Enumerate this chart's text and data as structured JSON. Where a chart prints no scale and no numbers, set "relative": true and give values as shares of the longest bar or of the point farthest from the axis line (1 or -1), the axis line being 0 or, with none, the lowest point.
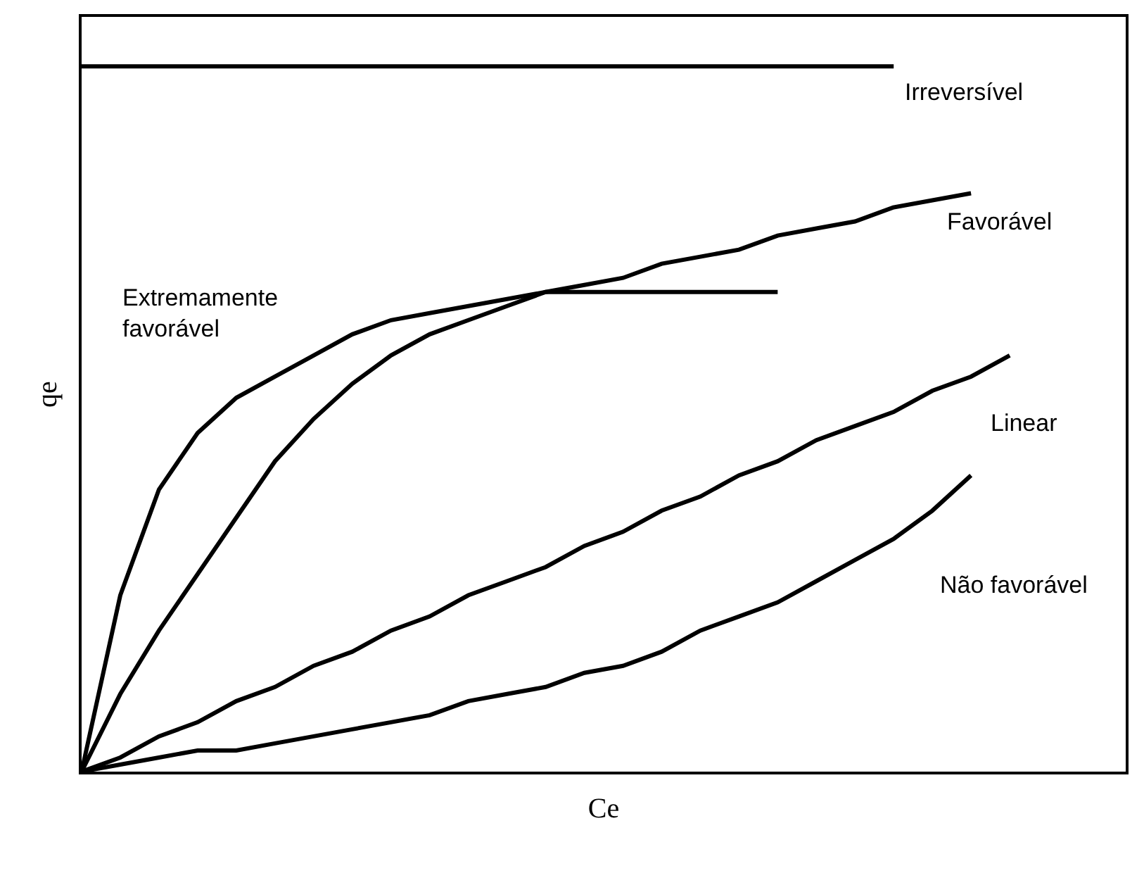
{
  "chart_data": {
    "type": "line",
    "relative": true,
    "xlabel": "Ce",
    "ylabel": "qe",
    "legend": false,
    "marker": "none",
    "line_style": "solid",
    "categories": [
      null,
      null,
      null,
      null,
      null,
      null,
      null,
      null,
      null,
      null,
      null,
      null,
      null,
      null,
      null,
      null,
      null,
      null,
      null,
      null,
      null,
      null,
      null,
      null,
      null,
      null,
      null,
      null
    ],
    "series": [
      {
        "name": "Irreversível",
        "color": "#000000",
        "values": [
          1,
          1,
          1,
          1,
          1,
          1,
          1,
          1,
          1,
          1,
          1,
          1,
          1,
          1,
          1,
          1,
          1,
          1,
          1,
          1,
          1,
          1,
          null,
          null,
          null,
          null,
          null,
          null
        ]
      },
      {
        "name": "Extremamente favorável",
        "color": "#000000",
        "values": [
          0,
          0.25,
          0.4,
          0.48,
          0.53,
          0.56,
          0.59,
          0.62,
          0.64,
          0.65,
          0.66,
          0.67,
          0.68,
          0.68,
          0.68,
          0.68,
          0.68,
          0.68,
          0.68,
          null,
          null,
          null,
          null,
          null,
          null,
          null,
          null,
          null
        ]
      },
      {
        "name": "Favorável",
        "color": "#000000",
        "values": [
          0,
          0.11,
          0.2,
          0.28,
          0.36,
          0.44,
          0.5,
          0.55,
          0.59,
          0.62,
          0.64,
          0.66,
          0.68,
          0.69,
          0.7,
          0.72,
          0.73,
          0.74,
          0.76,
          0.77,
          0.78,
          0.8,
          0.81,
          0.82,
          null,
          null,
          null,
          null
        ]
      },
      {
        "name": "Linear",
        "color": "#000000",
        "values": [
          0,
          0.02,
          0.05,
          0.07,
          0.1,
          0.12,
          0.15,
          0.17,
          0.2,
          0.22,
          0.25,
          0.27,
          0.29,
          0.32,
          0.34,
          0.37,
          0.39,
          0.42,
          0.44,
          0.47,
          0.49,
          0.51,
          0.54,
          0.56,
          0.59,
          null,
          null,
          null
        ]
      },
      {
        "name": "Não favorável",
        "color": "#000000",
        "values": [
          0,
          0.01,
          0.02,
          0.03,
          0.03,
          0.04,
          0.05,
          0.06,
          0.07,
          0.08,
          0.1,
          0.11,
          0.12,
          0.14,
          0.15,
          0.17,
          0.2,
          0.22,
          0.24,
          0.27,
          0.3,
          0.33,
          0.37,
          0.42,
          null,
          null,
          null,
          null
        ]
      }
    ]
  }
}
